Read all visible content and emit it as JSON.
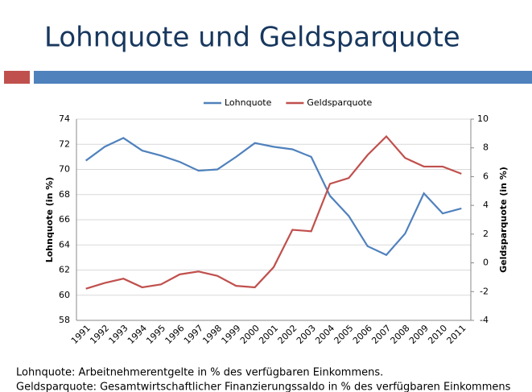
{
  "chart_data": {
    "type": "line",
    "title": "Lohnquote und Geldsparquote",
    "categories": [
      "1991",
      "1992",
      "1993",
      "1994",
      "1995",
      "1996",
      "1997",
      "1998",
      "1999",
      "2000",
      "2001",
      "2002",
      "2003",
      "2004",
      "2005",
      "2006",
      "2007",
      "2008",
      "2009",
      "2010",
      "2011"
    ],
    "series": [
      {
        "name": "Lohnquote",
        "color": "#4f81bd",
        "axis": "y",
        "values": [
          70.7,
          71.8,
          72.5,
          71.5,
          71.1,
          70.6,
          69.9,
          70.0,
          71.0,
          72.1,
          71.8,
          71.6,
          71.0,
          67.9,
          66.3,
          63.9,
          63.2,
          64.9,
          68.1,
          66.5,
          66.9
        ]
      },
      {
        "name": "Geldsparquote",
        "color": "#c0504d",
        "axis": "y2",
        "values": [
          -1.8,
          -1.4,
          -1.1,
          -1.7,
          -1.5,
          -0.8,
          -0.6,
          -0.9,
          -1.6,
          -1.7,
          -0.3,
          2.3,
          2.2,
          5.5,
          5.9,
          7.5,
          8.8,
          7.3,
          6.7,
          6.7,
          6.2
        ]
      }
    ],
    "ylabel": "Lohnquote (in %)",
    "y2label": "Geldsparquote (in %)",
    "ylim": [
      58,
      74
    ],
    "yticks": [
      58,
      60,
      62,
      64,
      66,
      68,
      70,
      72,
      74
    ],
    "y2lim": [
      -4,
      10
    ],
    "y2ticks": [
      -4,
      -2,
      0,
      2,
      4,
      6,
      8,
      10
    ],
    "grid": true,
    "legend": "top"
  },
  "footnotes": [
    "Lohnquote: Arbeitnehmerentgelte in % des verfügbaren Einkommens.",
    "Geldsparquote: Gesamtwirtschaftlicher Finanzierungssaldo in % des verfügbaren Einkommens"
  ]
}
